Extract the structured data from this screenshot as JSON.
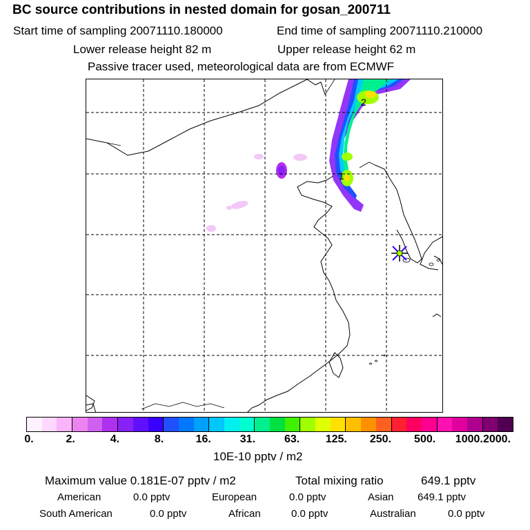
{
  "header": {
    "title": "BC  source contributions in nested domain for gosan_200711",
    "start_time": "Start time of sampling 20071110.180000",
    "end_time": "End time of sampling 20071110.210000",
    "lower_release": "Lower release height   82 m",
    "upper_release": "Upper release height   62 m",
    "tracer_note": "Passive tracer used, meteorological data are from ECMWF"
  },
  "map": {
    "plume_labels": [
      "2",
      "1"
    ],
    "receptor": "gosan station marker"
  },
  "legend": {
    "colors": [
      "#fff2ff",
      "#ffd8ff",
      "#fab4fa",
      "#ec84ef",
      "#d060f0",
      "#b030f0",
      "#8820f8",
      "#6010ff",
      "#3800ff",
      "#2050ff",
      "#0078ff",
      "#00a0ff",
      "#00c8ff",
      "#00f0f0",
      "#00ffd0",
      "#00f090",
      "#00e040",
      "#40f000",
      "#a0ff00",
      "#e0ff00",
      "#ffe000",
      "#ffc000",
      "#ff9000",
      "#ff6020",
      "#ff2030",
      "#ff0060",
      "#ff0090",
      "#ff10b0",
      "#e000a0",
      "#b00090",
      "#800070",
      "#500050"
    ],
    "tick_labels": [
      "0.",
      "2.",
      "4.",
      "8.",
      "16.",
      "31.",
      "63.",
      "125.",
      "250.",
      "500.",
      "1000.",
      "2000."
    ],
    "unit": "10E-10 pptv / m2"
  },
  "stats": {
    "max_label": "Maximum value  0.181E-07 pptv / m2",
    "total_label": "Total mixing ratio",
    "total_value": "649.1 pptv",
    "row1": [
      {
        "label": "American",
        "value": "0.0 pptv"
      },
      {
        "label": "European",
        "value": "0.0 pptv"
      },
      {
        "label": "Asian",
        "value": "649.1 pptv"
      }
    ],
    "row2": [
      {
        "label": "South American",
        "value": "0.0 pptv"
      },
      {
        "label": "African",
        "value": "0.0 pptv"
      },
      {
        "label": "Australian",
        "value": "0.0 pptv"
      }
    ]
  }
}
